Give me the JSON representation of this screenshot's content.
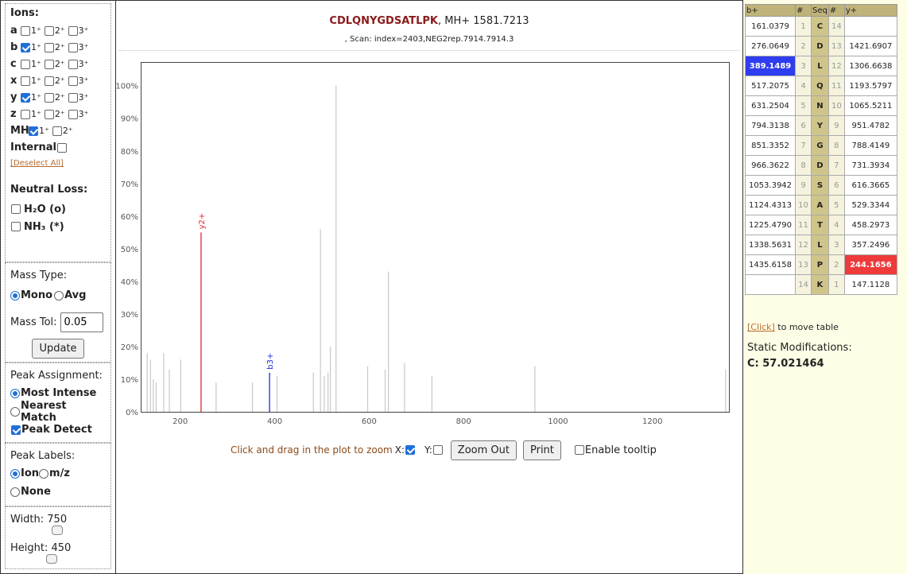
{
  "left": {
    "ions_title": "Ions:",
    "ions": [
      {
        "label": "a",
        "checks": [
          false,
          false,
          false
        ]
      },
      {
        "label": "b",
        "checks": [
          true,
          false,
          false
        ]
      },
      {
        "label": "c",
        "checks": [
          false,
          false,
          false
        ]
      },
      {
        "label": "x",
        "checks": [
          false,
          false,
          false
        ]
      },
      {
        "label": "y",
        "checks": [
          true,
          false,
          false
        ]
      },
      {
        "label": "z",
        "checks": [
          false,
          false,
          false
        ]
      }
    ],
    "charge_labels": [
      "1⁺",
      "2⁺",
      "3⁺"
    ],
    "mh_label": "MH",
    "mh_charges": [
      "1⁺",
      "2⁺"
    ],
    "internal_label": "Internal",
    "deselect_label": "[Deselect All]",
    "neutral_loss_title": "Neutral Loss:",
    "h2o_label": "H₂O (o)",
    "nh3_label": "NH₃ (*)",
    "mass_type_title": "Mass Type:",
    "mono_label": "Mono",
    "avg_label": "Avg",
    "mass_tol_label": "Mass Tol:",
    "mass_tol_value": "0.05",
    "update_label": "Update",
    "peak_assignment_title": "Peak Assignment:",
    "most_intense_label": "Most Intense",
    "nearest_match_label": "Nearest Match",
    "peak_detect_label": "Peak Detect",
    "peak_labels_title": "Peak Labels:",
    "ion_label": "Ion",
    "mz_label": "m/z",
    "none_label": "None",
    "width_label": "Width: 750",
    "height_label": "Height: 450"
  },
  "header": {
    "peptide": "CDLQNYGDSATLPK",
    "mh_text": ", MH+ 1581.7213",
    "scan_text": ", Scan: index=2403,NEG2rep.7914.7914.3"
  },
  "chart_data": {
    "type": "bar",
    "title": "",
    "xlabel": "",
    "ylabel": "",
    "xlim": [
      118,
      1362
    ],
    "ylim": [
      0,
      107
    ],
    "x_ticks": [
      200,
      400,
      600,
      800,
      1000,
      1200
    ],
    "y_ticks": [
      "0%",
      "10%",
      "20%",
      "30%",
      "40%",
      "50%",
      "60%",
      "70%",
      "80%",
      "90%",
      "100%"
    ],
    "peaks": [
      {
        "x": 130,
        "y": 18
      },
      {
        "x": 137,
        "y": 16
      },
      {
        "x": 143,
        "y": 10
      },
      {
        "x": 149,
        "y": 9
      },
      {
        "x": 165,
        "y": 18
      },
      {
        "x": 177,
        "y": 13
      },
      {
        "x": 201,
        "y": 16
      },
      {
        "x": 276,
        "y": 9
      },
      {
        "x": 353,
        "y": 9
      },
      {
        "x": 405,
        "y": 11
      },
      {
        "x": 482,
        "y": 12
      },
      {
        "x": 497,
        "y": 56
      },
      {
        "x": 505,
        "y": 11
      },
      {
        "x": 513,
        "y": 12
      },
      {
        "x": 518,
        "y": 20
      },
      {
        "x": 530,
        "y": 100
      },
      {
        "x": 597,
        "y": 14
      },
      {
        "x": 634,
        "y": 13
      },
      {
        "x": 641,
        "y": 43
      },
      {
        "x": 675,
        "y": 15
      },
      {
        "x": 733,
        "y": 11
      },
      {
        "x": 951,
        "y": 14
      },
      {
        "x": 1355,
        "y": 13
      }
    ],
    "annotated_peaks": [
      {
        "x": 244.17,
        "y": 55,
        "label": "y2+",
        "color": "#e8232b"
      },
      {
        "x": 389.15,
        "y": 12,
        "label": "b3+",
        "color": "#1c2bd6"
      }
    ]
  },
  "controls": {
    "zoom_hint": "Click and drag in the plot to zoom",
    "x_label": "X:",
    "y_label": "Y:",
    "zoom_out_label": "Zoom Out",
    "print_label": "Print",
    "tooltip_label": "Enable tooltip"
  },
  "frag_table": {
    "headers": [
      "b+",
      "#",
      "Seq",
      "#",
      "y+"
    ],
    "rows": [
      {
        "b": "161.0379",
        "n1": "1",
        "aa": "C",
        "n2": "14",
        "y": ""
      },
      {
        "b": "276.0649",
        "n1": "2",
        "aa": "D",
        "n2": "13",
        "y": "1421.6907"
      },
      {
        "b": "389.1489",
        "n1": "3",
        "aa": "L",
        "n2": "12",
        "y": "1306.6638",
        "hl_b": true
      },
      {
        "b": "517.2075",
        "n1": "4",
        "aa": "Q",
        "n2": "11",
        "y": "1193.5797"
      },
      {
        "b": "631.2504",
        "n1": "5",
        "aa": "N",
        "n2": "10",
        "y": "1065.5211"
      },
      {
        "b": "794.3138",
        "n1": "6",
        "aa": "Y",
        "n2": "9",
        "y": "951.4782"
      },
      {
        "b": "851.3352",
        "n1": "7",
        "aa": "G",
        "n2": "8",
        "y": "788.4149"
      },
      {
        "b": "966.3622",
        "n1": "8",
        "aa": "D",
        "n2": "7",
        "y": "731.3934"
      },
      {
        "b": "1053.3942",
        "n1": "9",
        "aa": "S",
        "n2": "6",
        "y": "616.3665"
      },
      {
        "b": "1124.4313",
        "n1": "10",
        "aa": "A",
        "n2": "5",
        "y": "529.3344"
      },
      {
        "b": "1225.4790",
        "n1": "11",
        "aa": "T",
        "n2": "4",
        "y": "458.2973"
      },
      {
        "b": "1338.5631",
        "n1": "12",
        "aa": "L",
        "n2": "3",
        "y": "357.2496"
      },
      {
        "b": "1435.6158",
        "n1": "13",
        "aa": "P",
        "n2": "2",
        "y": "244.1656",
        "hl_y": true
      },
      {
        "b": "",
        "n1": "14",
        "aa": "K",
        "n2": "1",
        "y": "147.1128"
      }
    ],
    "move_link": "[Click]",
    "move_text": " to move table",
    "mods_title": "Static Modifications:",
    "mods_value": "C: 57.021464"
  }
}
